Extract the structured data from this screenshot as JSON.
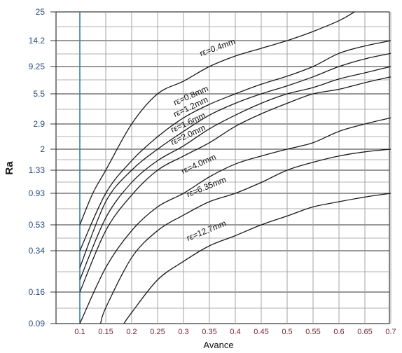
{
  "chart_data": {
    "type": "line",
    "xlabel": "Avance",
    "ylabel": "Ra",
    "x_ticks": [
      "0.1",
      "0.15",
      "0.2",
      "0.25",
      "0.3",
      "0.35",
      "0.4",
      "0.45",
      "0.5",
      "0.55",
      "0.6",
      "0.65",
      "0.7"
    ],
    "y_ticks": [
      "25",
      "14.2",
      "9.25",
      "5.5",
      "2.9",
      "2",
      "1.33",
      "0.93",
      "0.53",
      "0.34",
      "0.16",
      "0.09"
    ],
    "xlim": [
      0.1,
      0.7
    ],
    "grid": true,
    "series": [
      {
        "name": "rε=0.4mm",
        "x": [
          0.1,
          0.125,
          0.15,
          0.2,
          0.25,
          0.3,
          0.35,
          0.4,
          0.45,
          0.5,
          0.55,
          0.6,
          0.63
        ],
        "y": [
          "0.53",
          "0.93",
          "1.33",
          "2.9",
          "5.5",
          "7.0",
          "9.25",
          "11.0",
          "12.5",
          "14.2",
          "17.0",
          "21.0",
          "25"
        ]
      },
      {
        "name": "rε=0.8mm",
        "x": [
          0.1,
          0.15,
          0.2,
          0.25,
          0.3,
          0.35,
          0.4,
          0.45,
          0.5,
          0.55,
          0.6,
          0.65,
          0.7
        ],
        "y": [
          "0.34",
          "0.93",
          "1.6",
          "2.4",
          "3.3",
          "4.4",
          "5.5",
          "6.6",
          "7.7",
          "9.25",
          "11.5",
          "13.0",
          "14.2"
        ]
      },
      {
        "name": "rε=1.2mm",
        "x": [
          0.1,
          0.15,
          0.2,
          0.25,
          0.3,
          0.35,
          0.4,
          0.45,
          0.5,
          0.55,
          0.6,
          0.65,
          0.7
        ],
        "y": [
          "0.25",
          "0.8",
          "1.33",
          "2.0",
          "2.6",
          "3.5",
          "4.5",
          "5.5",
          "6.4",
          "7.6",
          "9.25",
          "10.5",
          "11.5"
        ]
      },
      {
        "name": "rε=1.6mm",
        "x": [
          0.1,
          0.15,
          0.2,
          0.25,
          0.3,
          0.35,
          0.4,
          0.45,
          0.5,
          0.55,
          0.6,
          0.65,
          0.7
        ],
        "y": [
          "0.2",
          "0.6",
          "1.1",
          "1.6",
          "2.1",
          "2.7",
          "3.5",
          "4.5",
          "5.5",
          "6.2",
          "7.3",
          "8.2",
          "9.25"
        ]
      },
      {
        "name": "rε=2.0mm",
        "x": [
          0.1,
          0.15,
          0.2,
          0.25,
          0.3,
          0.35,
          0.4,
          0.45,
          0.5,
          0.55,
          0.6,
          0.65,
          0.7
        ],
        "y": [
          "0.16",
          "0.48",
          "0.9",
          "1.33",
          "1.75",
          "2.2",
          "2.8",
          "3.6",
          "4.5",
          "5.5",
          "6.0",
          "6.8",
          "7.6"
        ]
      },
      {
        "name": "rε=4.0mm",
        "x": [
          0.1,
          0.15,
          0.2,
          0.25,
          0.3,
          0.35,
          0.4,
          0.45,
          0.5,
          0.55,
          0.6,
          0.65,
          0.7
        ],
        "y": [
          "0.09",
          "0.25",
          "0.48",
          "0.73",
          "0.93",
          "1.2",
          "1.5",
          "1.75",
          "2.0",
          "2.2",
          "2.6",
          "2.9",
          "3.3"
        ]
      },
      {
        "name": "rε=6.35mm",
        "x": [
          0.14,
          0.15,
          0.2,
          0.25,
          0.3,
          0.35,
          0.4,
          0.45,
          0.5,
          0.55,
          0.6,
          0.65,
          0.7
        ],
        "y": [
          "0.09",
          "0.12",
          "0.3",
          "0.48",
          "0.63",
          "0.8",
          "0.93",
          "1.1",
          "1.33",
          "1.55",
          "1.75",
          "1.9",
          "2.0"
        ]
      },
      {
        "name": "rε=12.7mm",
        "x": [
          0.185,
          0.2,
          0.25,
          0.3,
          0.35,
          0.4,
          0.45,
          0.5,
          0.55,
          0.6,
          0.65,
          0.7
        ],
        "y": [
          "0.09",
          "0.11",
          "0.2",
          "0.28",
          "0.37",
          "0.44",
          "0.53",
          "0.62",
          "0.73",
          "0.8",
          "0.87",
          "0.93"
        ]
      }
    ]
  },
  "colors": {
    "grid_major": "#333333",
    "grid_minor": "#999999",
    "first_vertical": "#3a7fb0",
    "curve": "#1a1a1a"
  }
}
